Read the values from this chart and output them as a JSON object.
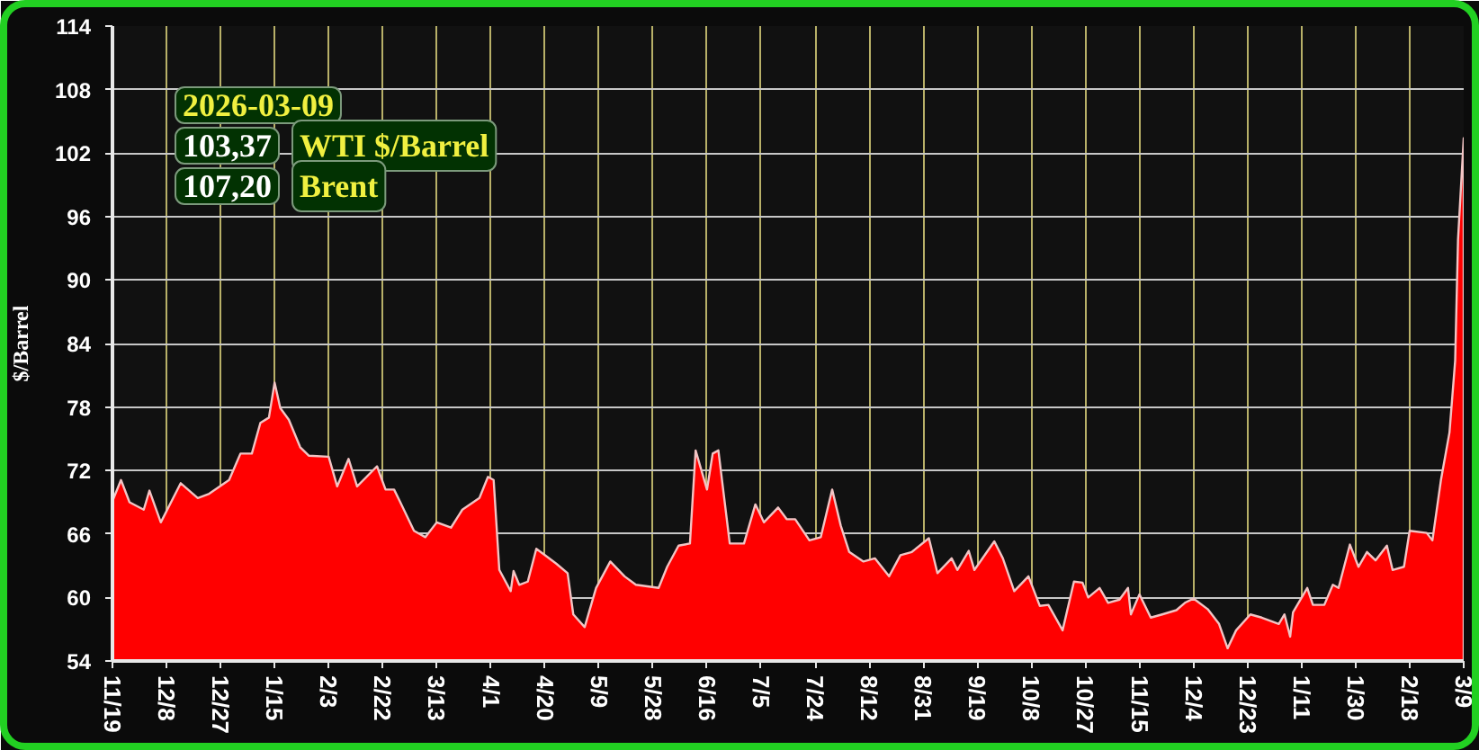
{
  "chart_data": {
    "type": "area",
    "ylabel": "$/Barrel",
    "annotations": [
      "2026-03-09",
      "103,37 WTI $/Barrel",
      "107,20 Brent"
    ],
    "x": [
      "2024-11-19",
      "2024-11-22",
      "2024-11-25",
      "2024-11-30",
      "2024-12-02",
      "2024-12-06",
      "2024-12-13",
      "2024-12-19",
      "2024-12-23",
      "2024-12-30",
      "2025-01-03",
      "2025-01-07",
      "2025-01-10",
      "2025-01-13",
      "2025-01-15",
      "2025-01-17",
      "2025-01-20",
      "2025-01-24",
      "2025-01-27",
      "2025-02-03",
      "2025-02-06",
      "2025-02-10",
      "2025-02-13",
      "2025-02-20",
      "2025-02-23",
      "2025-02-26",
      "2025-02-28",
      "2025-03-05",
      "2025-03-09",
      "2025-03-13",
      "2025-03-18",
      "2025-03-22",
      "2025-03-28",
      "2025-03-31",
      "2025-04-02",
      "2025-04-04",
      "2025-04-08",
      "2025-04-09",
      "2025-04-11",
      "2025-04-14",
      "2025-04-17",
      "2025-04-20",
      "2025-04-24",
      "2025-04-28",
      "2025-04-30",
      "2025-05-04",
      "2025-05-08",
      "2025-05-13",
      "2025-05-18",
      "2025-05-22",
      "2025-05-30",
      "2025-06-02",
      "2025-06-06",
      "2025-06-10",
      "2025-06-12",
      "2025-06-16",
      "2025-06-18",
      "2025-06-20",
      "2025-06-24",
      "2025-06-29",
      "2025-07-03",
      "2025-07-06",
      "2025-07-11",
      "2025-07-14",
      "2025-07-17",
      "2025-07-22",
      "2025-07-26",
      "2025-07-30",
      "2025-08-02",
      "2025-08-05",
      "2025-08-10",
      "2025-08-14",
      "2025-08-19",
      "2025-08-23",
      "2025-08-27",
      "2025-09-02",
      "2025-09-05",
      "2025-09-10",
      "2025-09-12",
      "2025-09-16",
      "2025-09-18",
      "2025-09-25",
      "2025-09-28",
      "2025-10-02",
      "2025-10-07",
      "2025-10-11",
      "2025-10-14",
      "2025-10-19",
      "2025-10-23",
      "2025-10-26",
      "2025-10-28",
      "2025-11-01",
      "2025-11-04",
      "2025-11-08",
      "2025-11-11",
      "2025-11-12",
      "2025-11-15",
      "2025-11-19",
      "2025-11-23",
      "2025-11-28",
      "2025-12-01",
      "2025-12-04",
      "2025-12-09",
      "2025-12-13",
      "2025-12-16",
      "2025-12-19",
      "2025-12-24",
      "2025-12-28",
      "2026-01-03",
      "2026-01-05",
      "2026-01-07",
      "2026-01-08",
      "2026-01-13",
      "2026-01-15",
      "2026-01-19",
      "2026-01-22",
      "2026-01-24",
      "2026-01-28",
      "2026-01-31",
      "2026-02-03",
      "2026-02-06",
      "2026-02-10",
      "2026-02-12",
      "2026-02-16",
      "2026-02-18",
      "2026-02-24",
      "2026-02-26",
      "2026-03-01",
      "2026-03-04",
      "2026-03-06",
      "2026-03-07",
      "2026-03-09"
    ],
    "series": [
      {
        "color": "#ff0000",
        "values": [
          69.1,
          71.1,
          69.0,
          68.3,
          70.1,
          67.1,
          70.8,
          69.4,
          69.8,
          71.1,
          73.6,
          73.6,
          76.5,
          77.0,
          80.3,
          77.9,
          76.8,
          74.2,
          73.4,
          73.3,
          70.5,
          73.1,
          70.5,
          72.4,
          70.2,
          70.2,
          69.1,
          66.3,
          65.7,
          67.1,
          66.6,
          68.3,
          69.4,
          71.4,
          71.1,
          62.6,
          60.6,
          62.5,
          61.2,
          61.5,
          64.6,
          64.0,
          63.2,
          62.3,
          58.4,
          57.2,
          60.9,
          63.4,
          62.0,
          61.2,
          60.9,
          62.9,
          64.9,
          65.1,
          73.9,
          70.2,
          73.6,
          73.9,
          65.1,
          65.1,
          68.8,
          67.1,
          68.5,
          67.4,
          67.4,
          65.4,
          65.7,
          70.2,
          66.8,
          64.3,
          63.4,
          63.7,
          62.0,
          64.0,
          64.3,
          65.6,
          62.3,
          63.7,
          62.6,
          64.4,
          62.6,
          65.3,
          63.7,
          60.6,
          62.0,
          59.2,
          59.3,
          56.9,
          61.5,
          61.4,
          60.0,
          60.9,
          59.5,
          59.8,
          60.9,
          58.4,
          60.3,
          58.1,
          58.4,
          58.8,
          59.5,
          59.9,
          58.9,
          57.5,
          55.2,
          56.9,
          58.4,
          58.1,
          57.5,
          58.4,
          56.3,
          58.6,
          60.9,
          59.3,
          59.3,
          61.2,
          60.9,
          65.0,
          62.9,
          64.3,
          63.5,
          64.9,
          62.6,
          62.9,
          66.3,
          66.1,
          65.4,
          71.1,
          75.6,
          82.4,
          93.8,
          103.4
        ]
      }
    ],
    "xlim": [
      "2024-11-19",
      "2026-03-09"
    ],
    "xticks": [
      {
        "value": "2024-11-19",
        "label": "11/19"
      },
      {
        "value": "2024-12-08",
        "label": "12/8"
      },
      {
        "value": "2024-12-27",
        "label": "12/27"
      },
      {
        "value": "2025-01-15",
        "label": "1/15"
      },
      {
        "value": "2025-02-03",
        "label": "2/3"
      },
      {
        "value": "2025-02-22",
        "label": "2/22"
      },
      {
        "value": "2025-03-13",
        "label": "3/13"
      },
      {
        "value": "2025-04-01",
        "label": "4/1"
      },
      {
        "value": "2025-04-20",
        "label": "4/20"
      },
      {
        "value": "2025-05-09",
        "label": "5/9"
      },
      {
        "value": "2025-05-28",
        "label": "5/28"
      },
      {
        "value": "2025-06-16",
        "label": "6/16"
      },
      {
        "value": "2025-07-05",
        "label": "7/5"
      },
      {
        "value": "2025-07-24",
        "label": "7/24"
      },
      {
        "value": "2025-08-12",
        "label": "8/12"
      },
      {
        "value": "2025-08-31",
        "label": "8/31"
      },
      {
        "value": "2025-09-19",
        "label": "9/19"
      },
      {
        "value": "2025-10-08",
        "label": "10/8"
      },
      {
        "value": "2025-10-27",
        "label": "10/27"
      },
      {
        "value": "2025-11-15",
        "label": "11/15"
      },
      {
        "value": "2025-12-04",
        "label": "12/4"
      },
      {
        "value": "2025-12-23",
        "label": "12/23"
      },
      {
        "value": "2026-01-11",
        "label": "1/11"
      },
      {
        "value": "2026-01-30",
        "label": "1/30"
      },
      {
        "value": "2026-02-18",
        "label": "2/18"
      },
      {
        "value": "2026-03-09",
        "label": "3/9"
      }
    ],
    "ylim": [
      54,
      114
    ],
    "yticks": [
      54,
      60,
      66,
      72,
      78,
      84,
      90,
      96,
      102,
      108,
      114
    ],
    "grid": true
  }
}
